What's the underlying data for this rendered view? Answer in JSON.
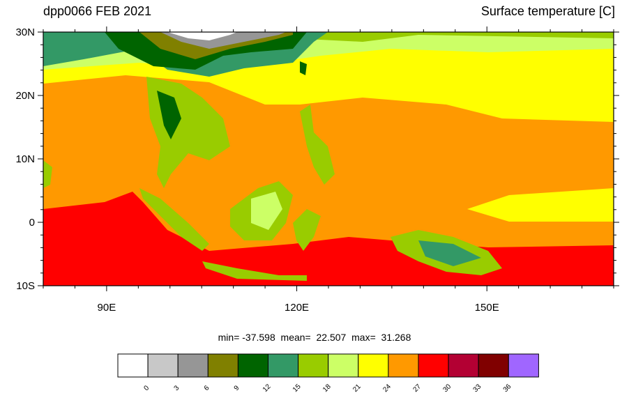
{
  "title_left": "dpp0066 FEB 2021",
  "title_right": "Surface temperature [C]",
  "stats": {
    "min": "-37.598",
    "mean": "22.507",
    "max": "31.268"
  },
  "map": {
    "lat_ticks": [
      "30N",
      "20N",
      "10N",
      "0",
      "10S"
    ],
    "lon_ticks": [
      "90E",
      "120E",
      "150E"
    ]
  },
  "colorbar": {
    "labels": [
      "0",
      "3",
      "6",
      "9",
      "12",
      "15",
      "18",
      "21",
      "24",
      "27",
      "30",
      "33",
      "36"
    ],
    "colors": [
      "#ffffff",
      "#c8c8c8",
      "#969696",
      "#808000",
      "#006400",
      "#339966",
      "#99cc00",
      "#ccff66",
      "#ffff00",
      "#ff9900",
      "#ff0000",
      "#b30033",
      "#800000",
      "#a066ff"
    ]
  }
}
